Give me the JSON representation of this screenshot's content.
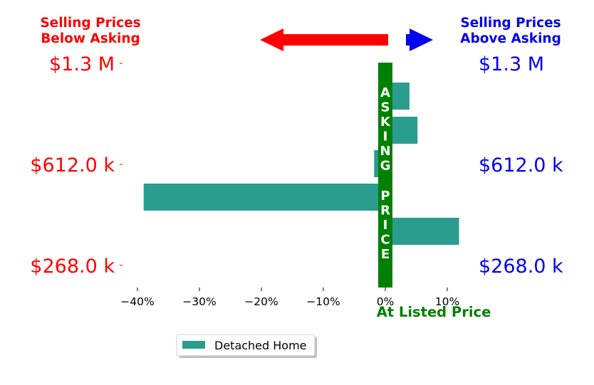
{
  "header": {
    "below_line1": "Selling Prices",
    "below_line2": "Below Asking",
    "above_line1": "Selling Prices",
    "above_line2": "Above Asking"
  },
  "colors": {
    "below": "#ff0000",
    "above": "#0000ee",
    "asking_bar": "#008000",
    "bars": "#2a9d8f"
  },
  "price_labels": {
    "left": [
      "$1.3 M",
      "$612.0 k",
      "$268.0 k"
    ],
    "right": [
      "$1.3 M",
      "$612.0 k",
      "$268.0 k"
    ]
  },
  "asking_price_label": "ASKING PRICE",
  "listed_label": "At Listed Price",
  "chart_data": {
    "type": "bar",
    "orientation": "horizontal",
    "title": "",
    "xlabel": "At Listed Price",
    "x_tick_labels": [
      "−40%",
      "−30%",
      "−20%",
      "−10%",
      "0%",
      "10%"
    ],
    "x_ticks": [
      -40,
      -30,
      -20,
      -10,
      0,
      10
    ],
    "xlim": [
      -43,
      13
    ],
    "series": [
      {
        "name": "Detached Home",
        "values": [
          3.9,
          5.2,
          -1.8,
          -39.0,
          11.9
        ]
      }
    ],
    "legend_position": "bottom-center",
    "grid": false
  }
}
